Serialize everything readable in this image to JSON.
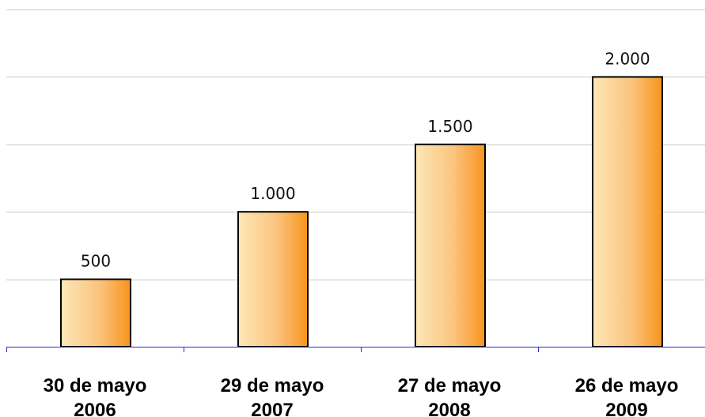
{
  "chart_data": {
    "type": "bar",
    "categories": [
      [
        "30 de mayo",
        "2006"
      ],
      [
        "29 de mayo",
        "2007"
      ],
      [
        "27 de mayo",
        "2008"
      ],
      [
        "26 de mayo",
        "2009"
      ]
    ],
    "values": [
      500,
      1000,
      1500,
      2000
    ],
    "data_labels": [
      "500",
      "1.000",
      "1.500",
      "2.000"
    ],
    "title": "",
    "xlabel": "",
    "ylabel": "",
    "ylim": [
      0,
      2500
    ],
    "gridlines": [
      500,
      1000,
      1500,
      2000,
      2500
    ],
    "grid": true,
    "legend": "none",
    "colors": {
      "bar_light": "#fde7b7",
      "bar_mid": "#fbc47e",
      "bar_dark": "#f7941d",
      "bar_outline": "#000000",
      "axis": "#2b2bd6",
      "grid": "#c8c8c8"
    }
  }
}
